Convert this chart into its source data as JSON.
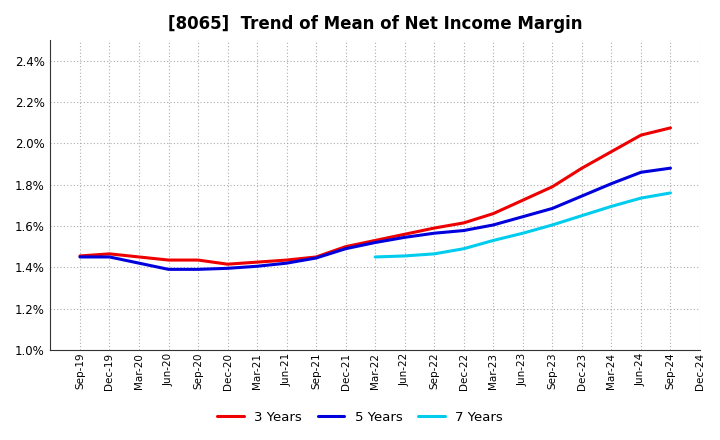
{
  "title": "[8065]  Trend of Mean of Net Income Margin",
  "title_fontsize": 12,
  "ylim": [
    0.01,
    0.025
  ],
  "yticks": [
    0.01,
    0.012,
    0.014,
    0.016,
    0.018,
    0.02,
    0.022,
    0.024
  ],
  "background_color": "#ffffff",
  "plot_bg_color": "#ffffff",
  "grid_color": "#999999",
  "x_labels": [
    "Sep-19",
    "Dec-19",
    "Mar-20",
    "Jun-20",
    "Sep-20",
    "Dec-20",
    "Mar-21",
    "Jun-21",
    "Sep-21",
    "Dec-21",
    "Mar-22",
    "Jun-22",
    "Sep-22",
    "Dec-22",
    "Mar-23",
    "Jun-23",
    "Sep-23",
    "Dec-23",
    "Mar-24",
    "Jun-24",
    "Sep-24",
    "Dec-24"
  ],
  "series": {
    "3 Years": {
      "color": "#ee0000",
      "linewidth": 2.2,
      "values": [
        0.01455,
        0.01465,
        0.0145,
        0.01435,
        0.01435,
        0.01415,
        0.01425,
        0.01435,
        0.0145,
        0.015,
        0.0153,
        0.0156,
        0.0159,
        0.01615,
        0.0166,
        0.01725,
        0.0179,
        0.0188,
        0.0196,
        0.0204,
        0.02075,
        null
      ]
    },
    "5 Years": {
      "color": "#0000dd",
      "linewidth": 2.2,
      "values": [
        0.0145,
        0.0145,
        0.0142,
        0.0139,
        0.0139,
        0.01395,
        0.01405,
        0.0142,
        0.01445,
        0.0149,
        0.0152,
        0.01545,
        0.01565,
        0.01578,
        0.01605,
        0.01645,
        0.01685,
        0.01745,
        0.01805,
        0.0186,
        0.0188,
        null
      ]
    },
    "7 Years": {
      "color": "#00ccee",
      "linewidth": 2.2,
      "values": [
        null,
        null,
        null,
        null,
        null,
        null,
        null,
        null,
        null,
        null,
        0.0145,
        0.01455,
        0.01465,
        0.0149,
        0.0153,
        0.01565,
        0.01605,
        0.0165,
        0.01695,
        0.01735,
        0.0176,
        null
      ]
    },
    "10 Years": {
      "color": "#00aa00",
      "linewidth": 2.2,
      "values": [
        null,
        null,
        null,
        null,
        null,
        null,
        null,
        null,
        null,
        null,
        null,
        null,
        null,
        null,
        null,
        null,
        null,
        null,
        null,
        null,
        null,
        null
      ]
    }
  },
  "legend_ncol": 4,
  "legend_fontsize": 9.5
}
